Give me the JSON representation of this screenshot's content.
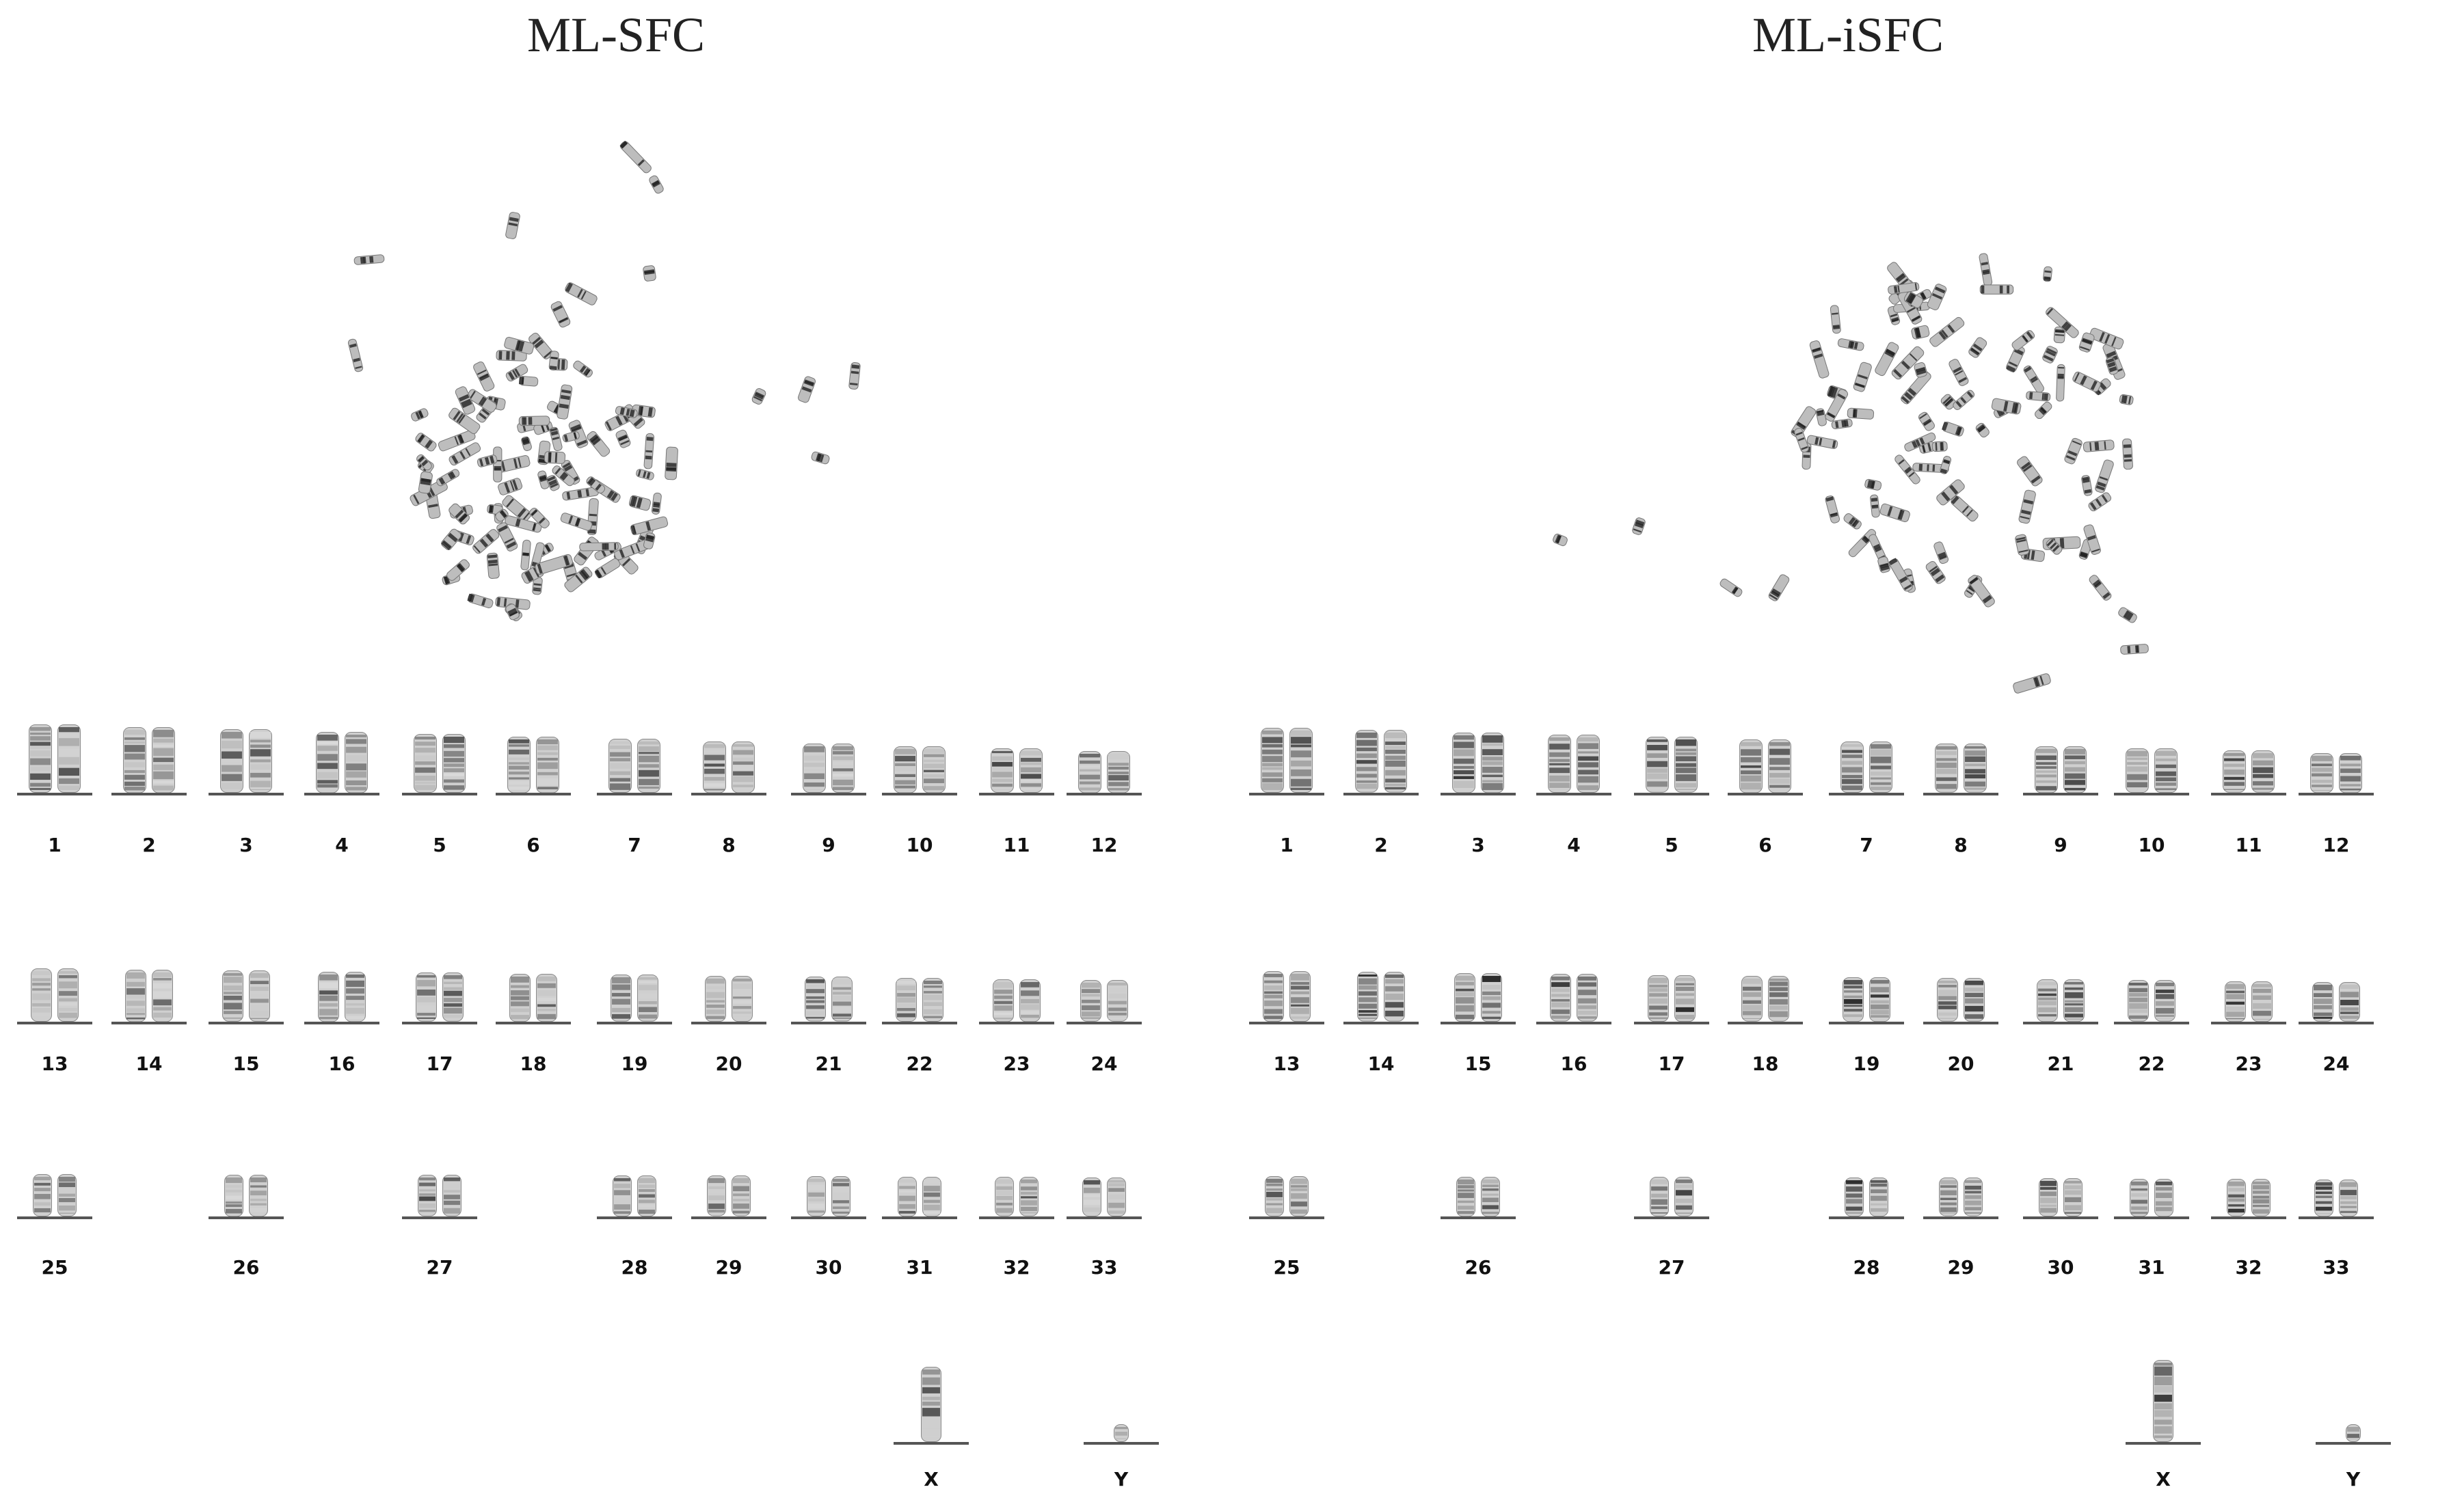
{
  "panels": [
    {
      "id": "left",
      "title": "ML-SFC",
      "rows": [
        [
          "1",
          "2",
          "3",
          "4",
          "5",
          "6",
          "7",
          "8",
          "9",
          "10",
          "11",
          "12"
        ],
        [
          "13",
          "14",
          "15",
          "16",
          "17",
          "18",
          "19",
          "20",
          "21",
          "22",
          "23",
          "24"
        ],
        [
          "25",
          "26",
          "27",
          "28",
          "29",
          "30",
          "31",
          "32",
          "33"
        ],
        [
          "X",
          "Y"
        ]
      ]
    },
    {
      "id": "right",
      "title": "ML-iSFC",
      "rows": [
        [
          "1",
          "2",
          "3",
          "4",
          "5",
          "6",
          "7",
          "8",
          "9",
          "10",
          "11",
          "12"
        ],
        [
          "13",
          "14",
          "15",
          "16",
          "17",
          "18",
          "19",
          "20",
          "21",
          "22",
          "23",
          "24"
        ],
        [
          "25",
          "26",
          "27",
          "28",
          "29",
          "30",
          "31",
          "32",
          "33"
        ],
        [
          "X",
          "Y"
        ]
      ]
    }
  ]
}
